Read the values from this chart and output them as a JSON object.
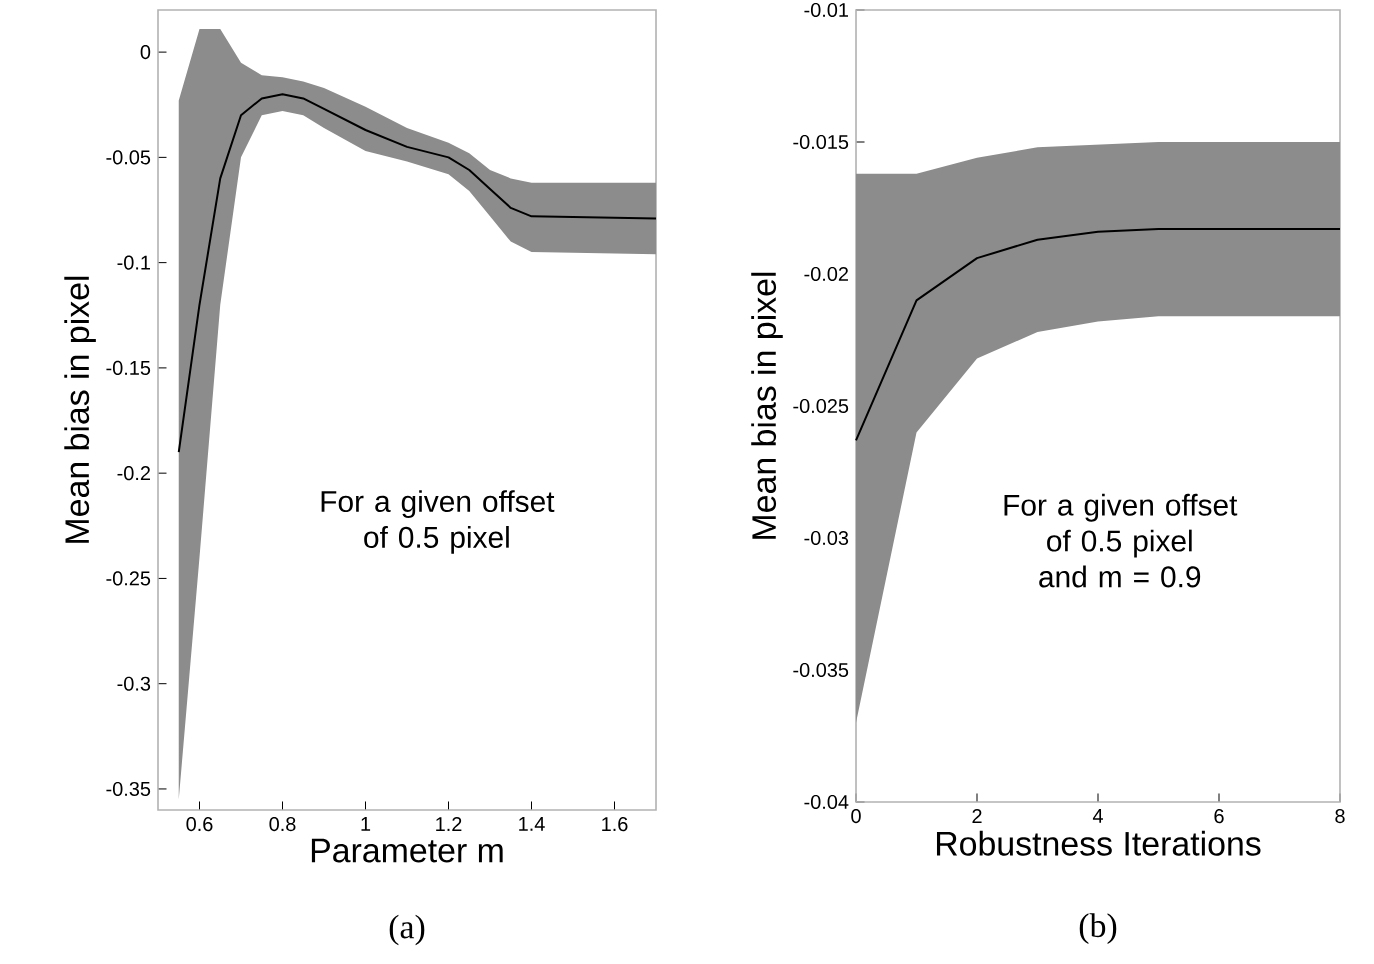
{
  "chart_data": [
    {
      "type": "line",
      "xlabel": "Parameter m",
      "ylabel": "Mean bias in pixel",
      "annotations": [
        "For a given offset of 0.5 pixel",
        "(a)"
      ],
      "xlim": [
        0.5,
        1.7
      ],
      "ylim": [
        -0.36,
        0.02
      ],
      "xticks": [
        0.6,
        0.8,
        1,
        1.2,
        1.4,
        1.6
      ],
      "yticks": [
        -0.35,
        -0.3,
        -0.25,
        -0.2,
        -0.15,
        -0.1,
        -0.05,
        0
      ],
      "series": [
        {
          "color": "#000000",
          "x": [
            0.55,
            0.6,
            0.65,
            0.7,
            0.75,
            0.8,
            0.85,
            0.9,
            1.0,
            1.1,
            1.2,
            1.25,
            1.3,
            1.35,
            1.4,
            1.7
          ],
          "values": [
            -0.19,
            -0.12,
            -0.06,
            -0.03,
            -0.022,
            -0.02,
            -0.022,
            -0.027,
            -0.037,
            -0.045,
            -0.05,
            -0.056,
            -0.065,
            -0.074,
            -0.078,
            -0.079
          ],
          "upper": [
            -0.023,
            0.011,
            0.011,
            -0.005,
            -0.011,
            -0.012,
            -0.014,
            -0.017,
            -0.026,
            -0.036,
            -0.043,
            -0.048,
            -0.056,
            -0.06,
            -0.062,
            -0.062
          ],
          "lower": [
            -0.355,
            -0.24,
            -0.12,
            -0.05,
            -0.03,
            -0.028,
            -0.03,
            -0.036,
            -0.047,
            -0.052,
            -0.058,
            -0.066,
            -0.078,
            -0.09,
            -0.095,
            -0.096
          ]
        }
      ]
    },
    {
      "type": "line",
      "xlabel": "Robustness Iterations",
      "ylabel": "Mean bias in pixel",
      "annotations": [
        "For a given offset of 0.5 pixel and m = 0.9",
        "(b)"
      ],
      "xlim": [
        0,
        8
      ],
      "ylim": [
        -0.04,
        -0.01
      ],
      "xticks": [
        0,
        2,
        4,
        6,
        8
      ],
      "yticks": [
        -0.04,
        -0.035,
        -0.03,
        -0.025,
        -0.02,
        -0.015,
        -0.01
      ],
      "series": [
        {
          "color": "#000000",
          "x": [
            0,
            1,
            2,
            3,
            4,
            5,
            6,
            7,
            8
          ],
          "values": [
            -0.0263,
            -0.021,
            -0.0194,
            -0.0187,
            -0.0184,
            -0.0183,
            -0.0183,
            -0.0183,
            -0.0183
          ],
          "upper": [
            -0.0162,
            -0.0162,
            -0.0156,
            -0.0152,
            -0.0151,
            -0.015,
            -0.015,
            -0.015,
            -0.015
          ],
          "lower": [
            -0.037,
            -0.026,
            -0.0232,
            -0.0222,
            -0.0218,
            -0.0216,
            -0.0216,
            -0.0216,
            -0.0216
          ]
        }
      ]
    }
  ]
}
